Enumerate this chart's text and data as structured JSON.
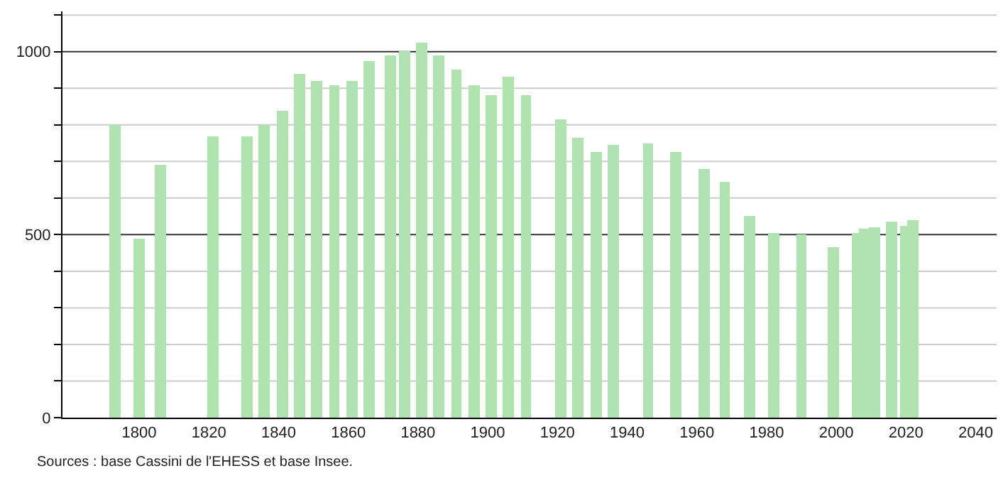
{
  "chart_data": {
    "type": "bar",
    "x": [
      1793,
      1800,
      1806,
      1821,
      1831,
      1836,
      1841,
      1846,
      1851,
      1856,
      1861,
      1866,
      1872,
      1876,
      1881,
      1886,
      1891,
      1896,
      1901,
      1906,
      1911,
      1921,
      1926,
      1931,
      1936,
      1946,
      1954,
      1962,
      1968,
      1975,
      1982,
      1990,
      1999,
      2006,
      2008,
      2011,
      2016,
      2020,
      2022
    ],
    "values": [
      800,
      490,
      690,
      770,
      770,
      800,
      840,
      940,
      920,
      910,
      920,
      975,
      990,
      1000,
      1025,
      990,
      950,
      910,
      880,
      930,
      880,
      815,
      765,
      725,
      745,
      750,
      725,
      680,
      645,
      550,
      505,
      500,
      465,
      505,
      515,
      520,
      535,
      525,
      540
    ],
    "color": "#b0e3b0",
    "xlim": [
      1778,
      2046
    ],
    "xticks": [
      1800,
      1820,
      1840,
      1860,
      1880,
      1900,
      1920,
      1940,
      1960,
      1980,
      2000,
      2020,
      2040
    ],
    "ylim": [
      0,
      1110
    ],
    "yticks": [
      0,
      {
        "value": 100,
        "label": null
      },
      {
        "value": 200,
        "label": null
      },
      {
        "value": 300,
        "label": null
      },
      {
        "value": 400,
        "label": null
      },
      500,
      {
        "value": 600,
        "label": null
      },
      {
        "value": 700,
        "label": null
      },
      {
        "value": 800,
        "label": null
      },
      {
        "value": 900,
        "label": null
      },
      1000,
      {
        "value": 1100,
        "label": null
      }
    ],
    "grid": "y",
    "annotations": [
      "Sources : base Cassini de l'EHESS et base Insee."
    ]
  }
}
